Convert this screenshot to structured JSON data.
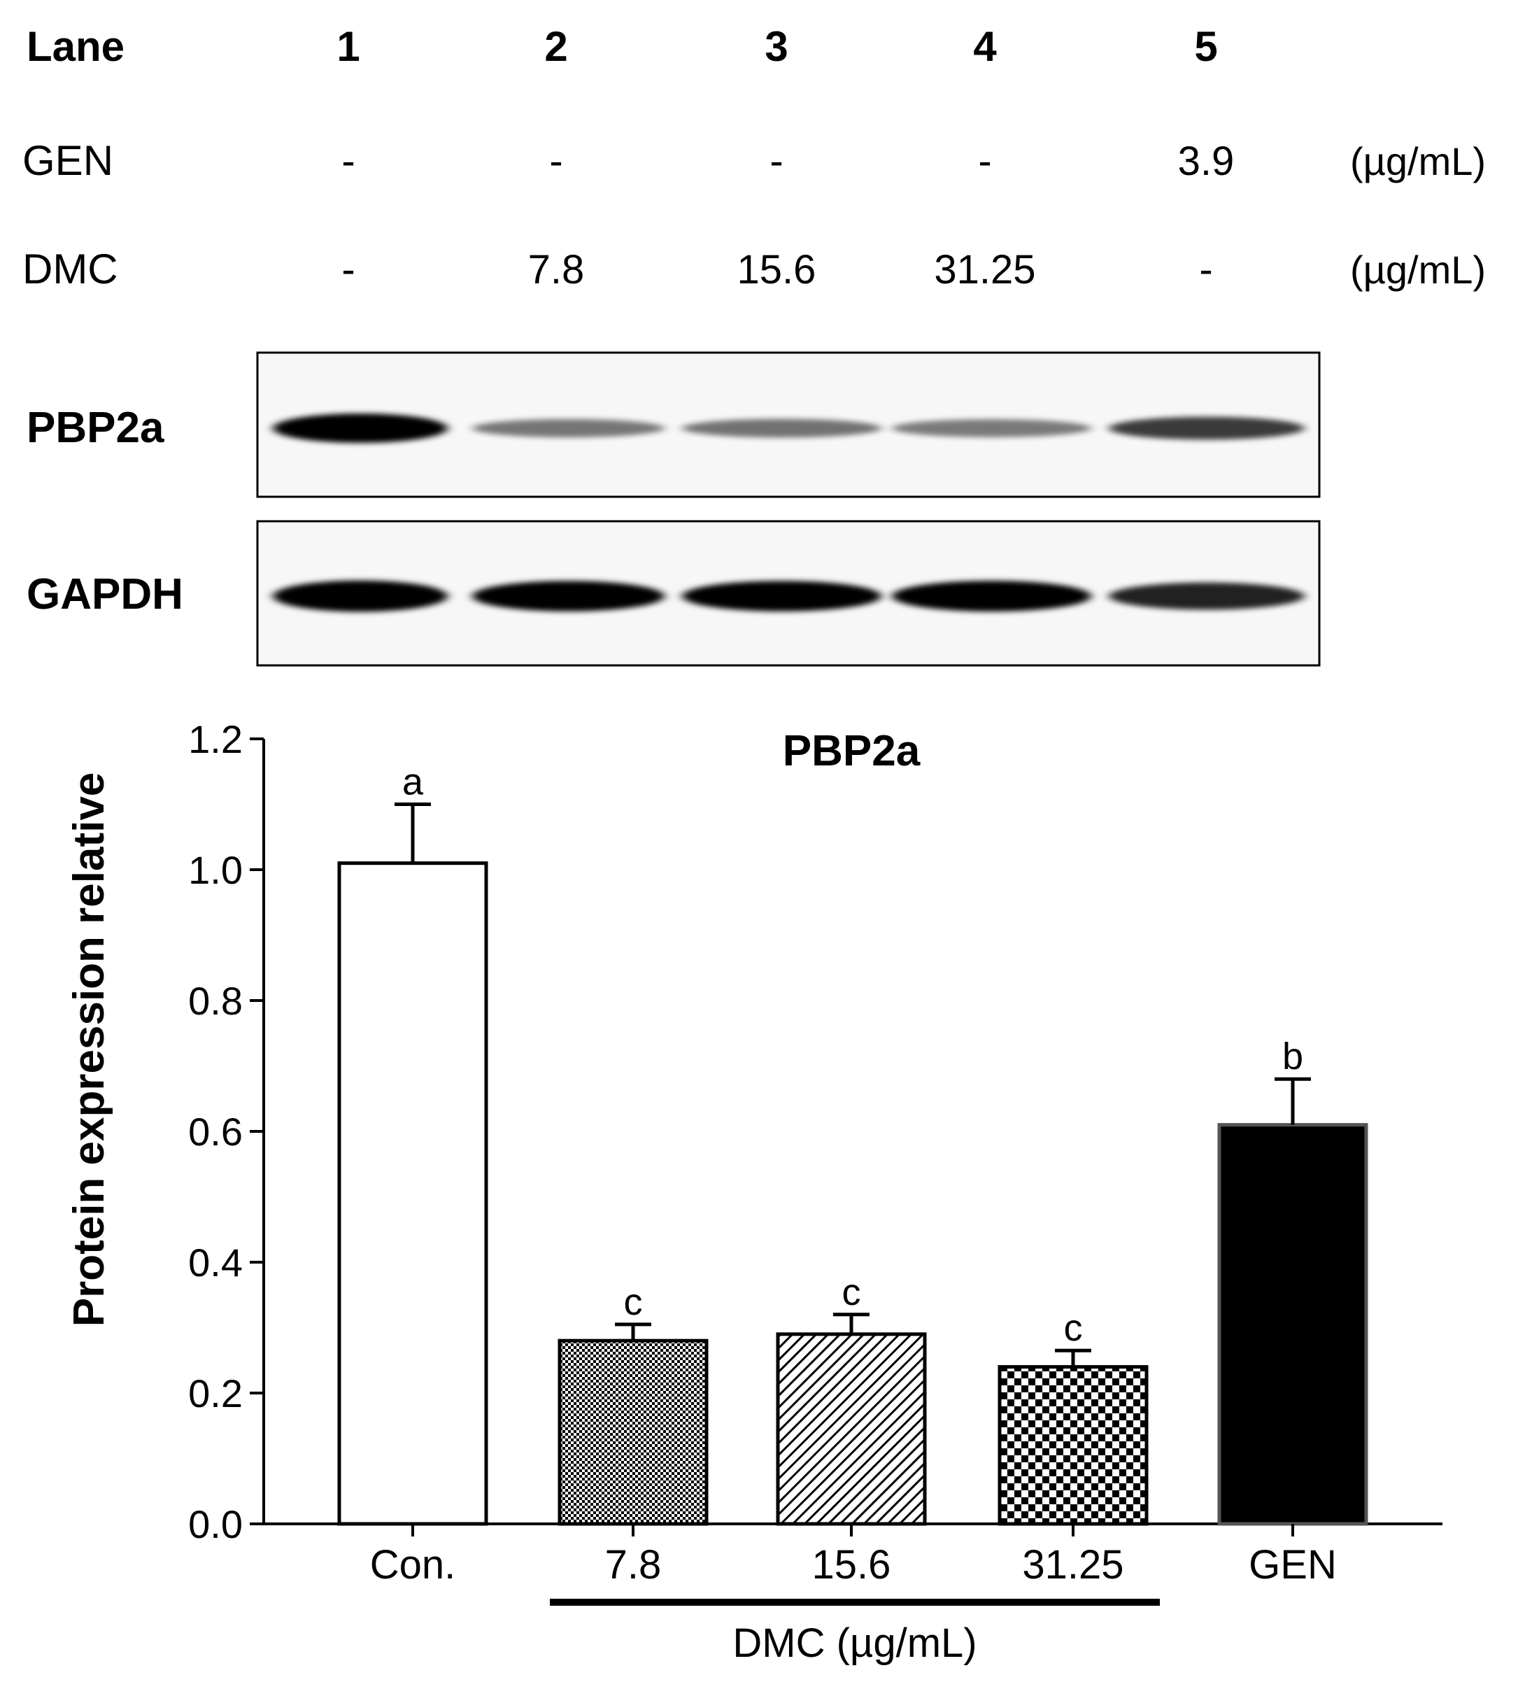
{
  "blot": {
    "lane_label": "Lane",
    "lanes": [
      "1",
      "2",
      "3",
      "4",
      "5"
    ],
    "rows": [
      {
        "label": "GEN",
        "values": [
          "-",
          "-",
          "-",
          "-",
          "3.9"
        ],
        "unit": "(µg/mL)"
      },
      {
        "label": "DMC",
        "values": [
          "-",
          "7.8",
          "15.6",
          "31.25",
          "-"
        ],
        "unit": "(µg/mL)"
      }
    ],
    "panels": [
      {
        "label": "PBP2a",
        "band_intensity": [
          1.0,
          0.32,
          0.34,
          0.3,
          0.6
        ]
      },
      {
        "label": "GAPDH",
        "band_intensity": [
          0.95,
          0.9,
          0.9,
          0.92,
          0.72
        ]
      }
    ]
  },
  "chart_data": {
    "type": "bar",
    "title": "PBP2a",
    "ylabel": "Protein expression relative",
    "xlabel": "",
    "ylim": [
      0,
      1.2
    ],
    "yticks": [
      "0.0",
      "0.2",
      "0.4",
      "0.6",
      "0.8",
      "1.0",
      "1.2"
    ],
    "categories": [
      "Con.",
      "7.8",
      "15.6",
      "31.25",
      "GEN"
    ],
    "values": [
      1.01,
      0.28,
      0.29,
      0.24,
      0.61
    ],
    "errors": [
      0.09,
      0.025,
      0.03,
      0.025,
      0.07
    ],
    "significance": [
      "a",
      "c",
      "c",
      "c",
      "b"
    ],
    "fills": [
      "white",
      "dense-dots",
      "diagonal-hatch",
      "checker",
      "black"
    ],
    "group_bracket": {
      "label": "DMC (µg/mL)",
      "categories": [
        "7.8",
        "15.6",
        "31.25"
      ]
    }
  }
}
